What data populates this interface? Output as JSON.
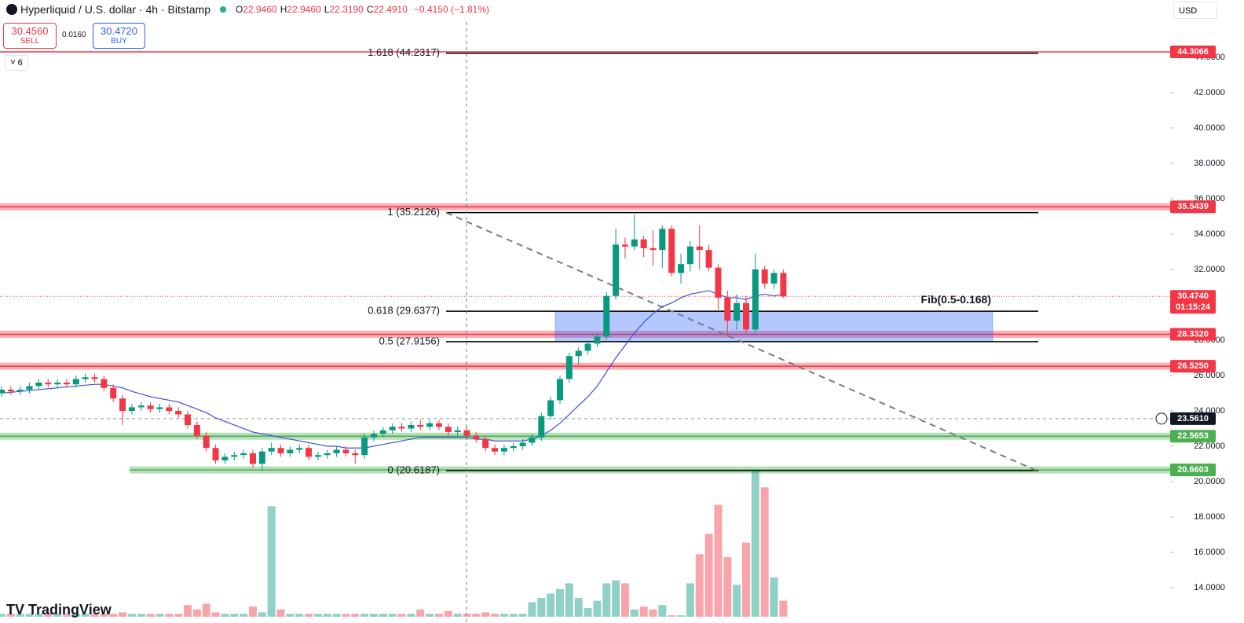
{
  "header": {
    "symbol": "Hyperliquid / U.S. dollar · 4h · Bitstamp",
    "ohlc": [
      {
        "key": "O",
        "value": "22.9460"
      },
      {
        "key": "H",
        "value": "22.9460"
      },
      {
        "key": "L",
        "value": "22.3190"
      },
      {
        "key": "C",
        "value": "22.4910"
      }
    ],
    "change": "−0.4150 (−1.81%)"
  },
  "trade": {
    "sell_price": "30.4560",
    "sell": "SELL",
    "spread": "0.0160",
    "buy_price": "30.4720",
    "buy": "BUY",
    "indicators": "6"
  },
  "currency": "USD",
  "brand": "TradingView",
  "chart_data": {
    "type": "candlestick",
    "up_color": "#089981",
    "down_color": "#f23645",
    "ma_color": "#3d4fd6",
    "open": [
      25.0,
      25.2,
      25.1,
      25.2,
      25.4,
      25.6,
      25.5,
      25.6,
      25.5,
      25.8,
      25.9,
      25.8,
      25.3,
      24.7,
      24.0,
      24.2,
      24.3,
      24.1,
      24.2,
      24.0,
      23.8,
      23.2,
      22.6,
      21.9,
      21.2,
      21.4,
      21.5,
      21.6,
      21.0,
      21.7,
      21.9,
      21.6,
      21.8,
      21.9,
      21.4,
      21.5,
      21.6,
      21.8,
      21.6,
      21.5,
      22.5,
      22.7,
      22.9,
      23.1,
      23.0,
      23.2,
      23.1,
      23.3,
      23.1,
      22.8,
      22.9,
      22.6,
      22.4,
      21.9,
      21.7,
      21.9,
      22.0,
      22.2,
      22.5,
      23.7,
      24.6,
      25.8,
      27.1,
      27.4,
      27.8,
      28.2,
      30.5,
      33.4,
      33.3,
      33.7,
      33.2,
      33.1,
      34.3,
      31.8,
      32.3,
      33.3,
      33.1,
      32.1,
      30.4,
      29.1,
      30.1,
      28.6,
      32.0,
      31.2,
      31.8
    ],
    "high": [
      25.4,
      25.4,
      25.4,
      25.6,
      25.8,
      25.8,
      25.8,
      25.8,
      26.0,
      26.1,
      26.1,
      26.0,
      25.5,
      24.9,
      24.4,
      24.5,
      24.5,
      24.4,
      24.4,
      24.2,
      24.0,
      23.4,
      22.8,
      22.1,
      21.6,
      21.7,
      21.8,
      21.8,
      21.9,
      22.2,
      22.1,
      22.0,
      22.1,
      22.1,
      21.7,
      21.8,
      22.0,
      22.0,
      21.8,
      22.7,
      22.9,
      23.1,
      23.3,
      23.3,
      23.4,
      23.5,
      23.5,
      23.5,
      23.3,
      23.1,
      23.1,
      22.8,
      22.6,
      22.1,
      22.1,
      22.2,
      22.4,
      22.7,
      23.9,
      24.8,
      26.0,
      27.3,
      27.6,
      28.0,
      28.4,
      30.7,
      34.3,
      33.8,
      35.1,
      33.9,
      34.2,
      34.5,
      34.5,
      32.9,
      33.6,
      34.5,
      33.4,
      32.3,
      30.8,
      30.6,
      30.5,
      32.9,
      32.2,
      32.0,
      32.0
    ],
    "low": [
      24.8,
      24.9,
      24.9,
      25.0,
      25.2,
      25.3,
      25.3,
      25.3,
      25.3,
      25.6,
      25.6,
      25.1,
      24.5,
      23.2,
      23.8,
      24.0,
      23.9,
      23.9,
      23.8,
      23.6,
      23.0,
      22.4,
      21.7,
      21.0,
      21.0,
      21.2,
      21.3,
      20.8,
      20.6,
      21.5,
      21.4,
      21.4,
      21.6,
      21.2,
      21.2,
      21.3,
      21.4,
      21.4,
      21.0,
      21.3,
      22.3,
      22.5,
      22.7,
      22.8,
      22.8,
      22.9,
      22.9,
      22.9,
      22.6,
      22.6,
      22.4,
      22.2,
      21.7,
      21.5,
      21.5,
      21.7,
      21.8,
      22.0,
      22.3,
      23.5,
      24.4,
      25.6,
      26.6,
      27.2,
      27.6,
      28.0,
      30.3,
      32.6,
      33.1,
      32.7,
      32.2,
      32.1,
      31.6,
      31.2,
      31.9,
      32.0,
      31.9,
      29.7,
      28.2,
      28.6,
      28.4,
      28.4,
      30.9,
      30.9,
      30.4
    ],
    "close": [
      25.2,
      25.1,
      25.2,
      25.4,
      25.6,
      25.5,
      25.6,
      25.5,
      25.8,
      25.9,
      25.8,
      25.3,
      24.7,
      24.0,
      24.2,
      24.3,
      24.1,
      24.2,
      24.0,
      23.8,
      23.2,
      22.6,
      21.9,
      21.2,
      21.4,
      21.5,
      21.6,
      21.0,
      21.7,
      21.9,
      21.6,
      21.8,
      21.9,
      21.4,
      21.5,
      21.6,
      21.8,
      21.6,
      21.5,
      22.5,
      22.7,
      22.9,
      23.1,
      23.0,
      23.2,
      23.1,
      23.3,
      23.1,
      22.8,
      22.9,
      22.6,
      22.4,
      21.9,
      21.7,
      21.9,
      22.0,
      22.2,
      22.5,
      23.7,
      24.6,
      25.8,
      27.1,
      27.4,
      27.8,
      28.2,
      30.5,
      33.4,
      33.3,
      33.7,
      33.2,
      33.1,
      34.3,
      31.8,
      32.3,
      33.3,
      33.1,
      32.1,
      30.4,
      29.1,
      30.1,
      28.6,
      32.0,
      31.2,
      31.8,
      30.474
    ],
    "volume": [
      2,
      2,
      2,
      2,
      2,
      2,
      2,
      2,
      2,
      2,
      2,
      2,
      2,
      3,
      2,
      2,
      2,
      2,
      2,
      2,
      8,
      5,
      9,
      3,
      2,
      2,
      2,
      7,
      3,
      76,
      5,
      2,
      2,
      2,
      2,
      2,
      2,
      2,
      2,
      2,
      2,
      2,
      2,
      2,
      2,
      5,
      2,
      2,
      4,
      2,
      2,
      2,
      3,
      2,
      2,
      2,
      2,
      10,
      13,
      16,
      19,
      23,
      13,
      6,
      11,
      23,
      25,
      23,
      5,
      7,
      5,
      8,
      1,
      1,
      23,
      43,
      57,
      77,
      41,
      22,
      51,
      100,
      89,
      27,
      11
    ],
    "ma": [
      25.0,
      25.05,
      25.1,
      25.15,
      25.2,
      25.25,
      25.3,
      25.35,
      25.4,
      25.45,
      25.5,
      25.5,
      25.4,
      25.3,
      25.1,
      24.95,
      24.8,
      24.7,
      24.6,
      24.5,
      24.3,
      24.1,
      23.9,
      23.6,
      23.4,
      23.2,
      23.0,
      22.8,
      22.7,
      22.6,
      22.5,
      22.4,
      22.3,
      22.2,
      22.1,
      22.0,
      22.0,
      21.9,
      21.9,
      21.9,
      22.0,
      22.1,
      22.2,
      22.3,
      22.4,
      22.5,
      22.5,
      22.5,
      22.5,
      22.5,
      22.5,
      22.4,
      22.4,
      22.3,
      22.3,
      22.3,
      22.3,
      22.4,
      22.6,
      22.9,
      23.3,
      23.8,
      24.3,
      24.8,
      25.4,
      26.2,
      27.0,
      27.7,
      28.4,
      29.0,
      29.5,
      29.9,
      30.1,
      30.4,
      30.6,
      30.7,
      30.8,
      30.6,
      30.4,
      30.4,
      30.3,
      30.5,
      30.6,
      30.5,
      30.6
    ],
    "ylim": [
      12,
      47.24
    ],
    "vlim": [
      0,
      100
    ],
    "yticks": [
      {
        "value": 44,
        "label": "44.0000"
      },
      {
        "value": 42,
        "label": "42.0000"
      },
      {
        "value": 40,
        "label": "40.0000"
      },
      {
        "value": 38,
        "label": "38.0000"
      },
      {
        "value": 36,
        "label": "36.0000"
      },
      {
        "value": 34,
        "label": "34.0000"
      },
      {
        "value": 32,
        "label": "32.0000"
      },
      {
        "value": 28,
        "label": "28.0000"
      },
      {
        "value": 26,
        "label": "26.0000"
      },
      {
        "value": 24,
        "label": "24.0000"
      },
      {
        "value": 22,
        "label": "22.0000"
      },
      {
        "value": 20,
        "label": "20.0000"
      },
      {
        "value": 18,
        "label": "18.0000"
      },
      {
        "value": 16,
        "label": "16.0000"
      },
      {
        "value": 14,
        "label": "14.0000"
      }
    ],
    "fib": {
      "label": "Fib(0.5-0.168)",
      "levels": [
        {
          "value": 44.2317,
          "label": "1.618 (44.2317)"
        },
        {
          "value": 35.2126,
          "label": "1 (35.2126)"
        },
        {
          "value": 29.6377,
          "label": "0.618 (29.6377)"
        },
        {
          "value": 27.9156,
          "label": "0.5 (27.9156)"
        },
        {
          "value": 20.6187,
          "label": "0 (20.6187)"
        }
      ]
    },
    "zones": [
      {
        "value": 44.3066,
        "label": "44.3066",
        "color": "#f23645"
      },
      {
        "value": 35.5439,
        "label": "35.5439",
        "color": "#f23645"
      },
      {
        "value": 28.332,
        "label": "28.3320",
        "color": "#f23645"
      },
      {
        "value": 26.525,
        "label": "26.5250",
        "color": "#f23645"
      },
      {
        "value": 22.5653,
        "label": "22.5653",
        "color": "#4caf50"
      },
      {
        "value": 20.6603,
        "label": "20.6603",
        "color": "#4caf50"
      }
    ],
    "last_price": {
      "value": 30.474,
      "label": "30.4740",
      "countdown": "01:15:24",
      "color": "#f23645"
    },
    "crosshair": {
      "value": 23.561,
      "label": "23.5610"
    }
  }
}
